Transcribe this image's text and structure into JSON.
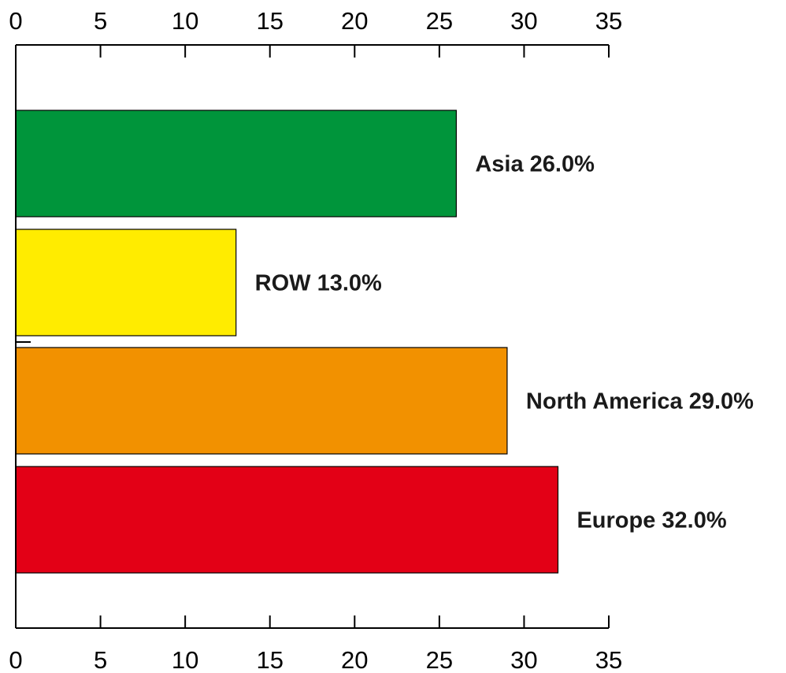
{
  "chart_data": {
    "type": "bar",
    "orientation": "horizontal",
    "categories": [
      "Asia",
      "ROW",
      "North America",
      "Europe"
    ],
    "values": [
      26.0,
      13.0,
      29.0,
      32.0
    ],
    "data_labels": [
      "Asia 26.0%",
      "ROW 13.0%",
      "North America 29.0%",
      "Europe 32.0%"
    ],
    "colors": [
      "#00953b",
      "#ffec00",
      "#f29100",
      "#e30016"
    ],
    "title": "",
    "xlabel": "",
    "ylabel": "",
    "xlim": [
      0,
      35
    ],
    "xticks": [
      0,
      5,
      10,
      15,
      20,
      25,
      30,
      35
    ],
    "xtick_labels": [
      "0",
      "5",
      "10",
      "15",
      "20",
      "25",
      "30",
      "35"
    ],
    "axis_top": true,
    "axis_bottom": true,
    "grid": false,
    "legend": "none"
  }
}
